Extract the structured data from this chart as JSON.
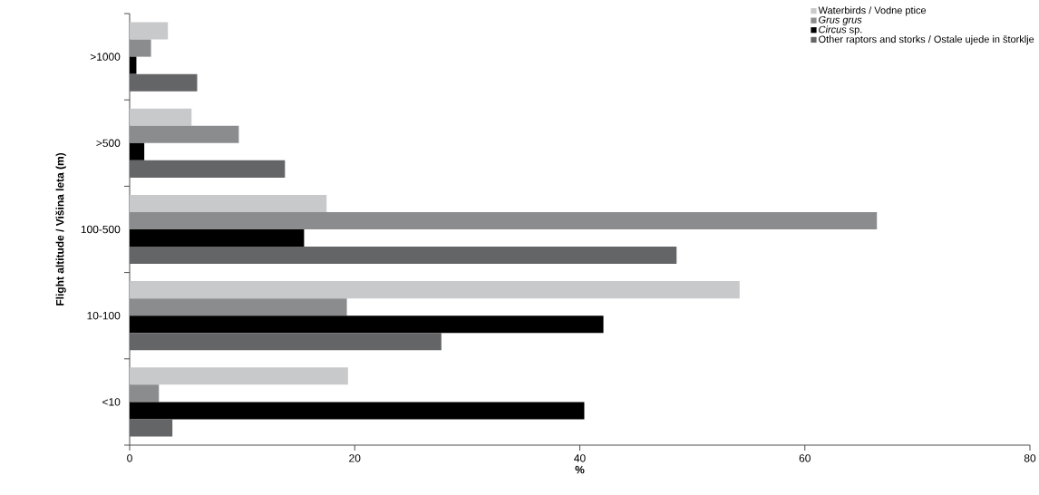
{
  "chart_data": {
    "type": "bar",
    "orientation": "horizontal",
    "xlabel": "%",
    "ylabel": "Flight altitude / Višina leta (m)",
    "categories": [
      ">1000",
      ">500",
      "100-500",
      "10-100",
      "<10"
    ],
    "xlim": [
      0,
      80
    ],
    "xticks": [
      0,
      20,
      40,
      60,
      80
    ],
    "legend": "top right",
    "series": [
      {
        "name": "Waterbirds / Vodne ptice",
        "color": "#c8c9cb",
        "values": [
          3.4,
          5.5,
          17.5,
          54.2,
          19.4
        ]
      },
      {
        "name": "*Grus grus*",
        "color": "#8b8c8e",
        "values": [
          1.9,
          9.7,
          66.4,
          19.3,
          2.6
        ]
      },
      {
        "name": "*Circus* sp.",
        "color": "#000000",
        "values": [
          0.6,
          1.3,
          15.5,
          42.1,
          40.4
        ]
      },
      {
        "name": "Other raptors and storks / Ostale ujede in štorklje",
        "color": "#646567",
        "values": [
          6.0,
          13.8,
          48.6,
          27.7,
          3.8
        ]
      }
    ]
  }
}
